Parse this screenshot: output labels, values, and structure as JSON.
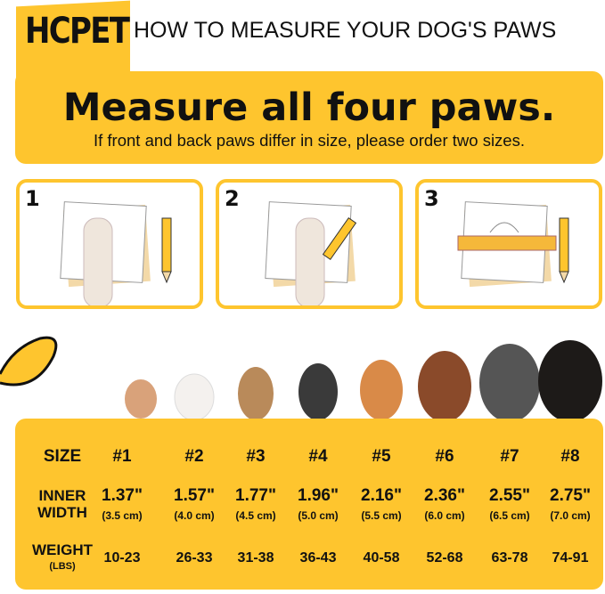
{
  "brand": {
    "logo": "HCPET",
    "accent": "#FEC52E"
  },
  "header": {
    "title": "HOW TO MEASURE YOUR DOG'S PAWS"
  },
  "banner": {
    "headline": "Measure all four paws.",
    "subtext": "If front and back paws differ in size, please order two sizes."
  },
  "steps": [
    {
      "number": "1",
      "icon": "paw-on-paper-icon"
    },
    {
      "number": "2",
      "icon": "trace-paw-pencil-icon"
    },
    {
      "number": "3",
      "icon": "ruler-measure-icon"
    }
  ],
  "size_table": {
    "size_label": "SIZE",
    "width_label": [
      "INNER",
      "WIDTH"
    ],
    "weight_label": "WEIGHT",
    "weight_unit": "(LBS)",
    "sizes": [
      {
        "size": "#1",
        "inches": "1.37\"",
        "cm": "(3.5 cm)",
        "weight": "10-23"
      },
      {
        "size": "#2",
        "inches": "1.57\"",
        "cm": "(4.0 cm)",
        "weight": "26-33"
      },
      {
        "size": "#3",
        "inches": "1.77\"",
        "cm": "(4.5 cm)",
        "weight": "31-38"
      },
      {
        "size": "#4",
        "inches": "1.96\"",
        "cm": "(5.0 cm)",
        "weight": "36-43"
      },
      {
        "size": "#5",
        "inches": "2.16\"",
        "cm": "(5.5 cm)",
        "weight": "40-58"
      },
      {
        "size": "#6",
        "inches": "2.36\"",
        "cm": "(6.0 cm)",
        "weight": "52-68"
      },
      {
        "size": "#7",
        "inches": "2.55\"",
        "cm": "(6.5 cm)",
        "weight": "63-78"
      },
      {
        "size": "#8",
        "inches": "2.75\"",
        "cm": "(7.0 cm)",
        "weight": "74-91"
      }
    ]
  }
}
